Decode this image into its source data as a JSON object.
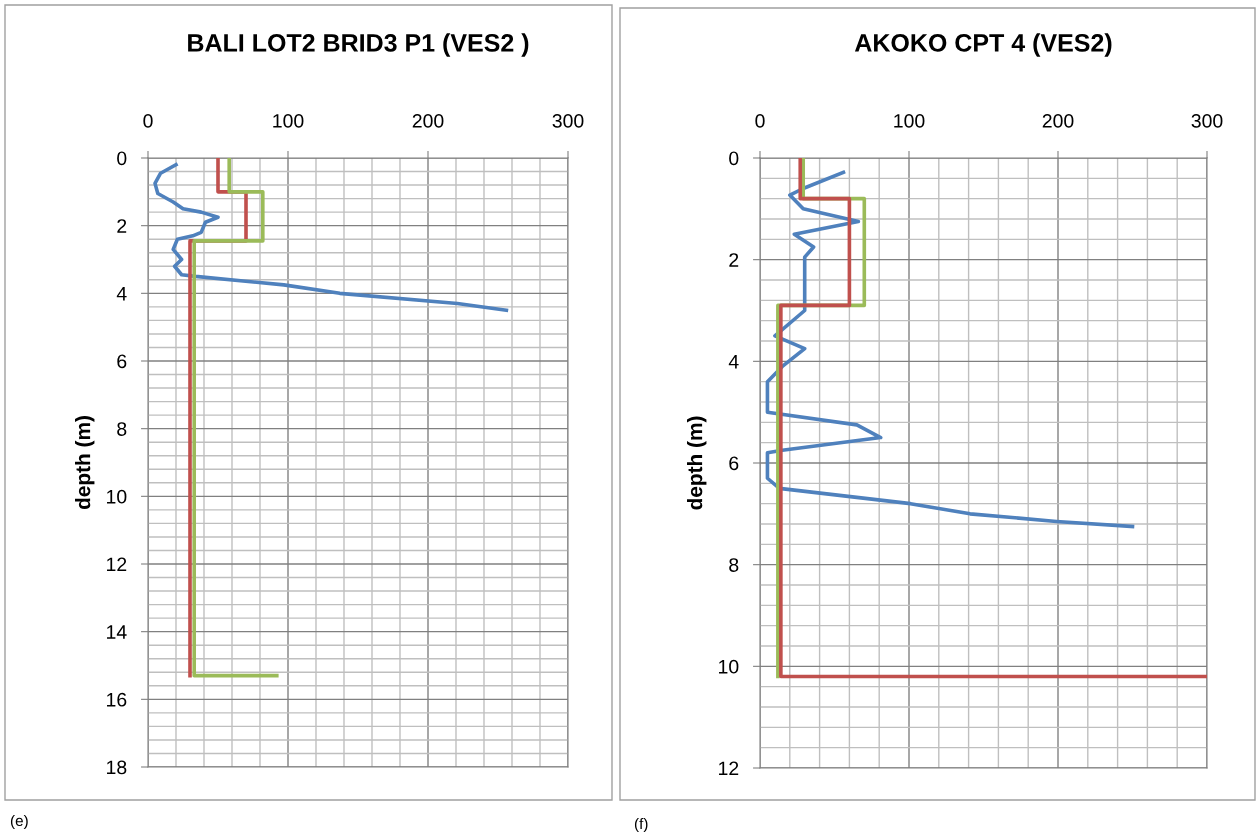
{
  "chart_data": [
    {
      "type": "line",
      "title": "BALI LOT2 BRID3 P1 (VES2 )",
      "ylabel": "depth (m)",
      "annotations": [
        "(e)"
      ],
      "xlim": [
        0,
        300
      ],
      "xticks": [
        0,
        100,
        200,
        300
      ],
      "ylim": [
        18,
        0
      ],
      "yticks": [
        0,
        2,
        4,
        6,
        8,
        10,
        12,
        14,
        16,
        18
      ],
      "grid": true,
      "legend": false,
      "marker": "none",
      "line_style": "solid",
      "series": [
        {
          "color": "#4f81bd",
          "x": [
            20,
            9,
            5,
            7,
            18,
            25,
            38,
            50,
            41,
            38,
            32,
            21,
            18,
            24,
            19,
            24,
            34,
            97,
            137,
            221,
            256
          ],
          "values": [
            0.2,
            0.45,
            0.75,
            1.05,
            1.3,
            1.5,
            1.6,
            1.75,
            1.9,
            2.2,
            2.3,
            2.4,
            2.7,
            3.0,
            3.2,
            3.45,
            3.5,
            3.75,
            4.0,
            4.3,
            4.5
          ]
        },
        {
          "color": "#c0504d",
          "x": [
            50,
            50,
            70,
            70,
            30,
            30
          ],
          "values": [
            0,
            1.0,
            1.0,
            2.45,
            2.45,
            15.3
          ]
        },
        {
          "color": "#9bbb59",
          "x": [
            58,
            58,
            82,
            82,
            33,
            33,
            92
          ],
          "values": [
            0,
            1.0,
            1.0,
            2.45,
            2.45,
            15.3,
            15.3
          ]
        }
      ]
    },
    {
      "type": "line",
      "title": "AKOKO CPT 4 (VES2)",
      "ylabel": "depth (m)",
      "annotations": [
        "(f)"
      ],
      "xlim": [
        0,
        300
      ],
      "xticks": [
        0,
        100,
        200,
        300
      ],
      "ylim": [
        12,
        0
      ],
      "yticks": [
        0,
        2,
        4,
        6,
        8,
        10,
        12
      ],
      "grid": true,
      "legend": false,
      "marker": "none",
      "line_style": "solid",
      "series": [
        {
          "color": "#4f81bd",
          "x": [
            56,
            29,
            20,
            29,
            66,
            23,
            36,
            30,
            30,
            10,
            30,
            15,
            5,
            5,
            65,
            81,
            15,
            5,
            5,
            13,
            101,
            141,
            199,
            250
          ],
          "values": [
            0.28,
            0.6,
            0.73,
            1.0,
            1.25,
            1.5,
            1.75,
            1.95,
            3.0,
            3.5,
            3.75,
            4.1,
            4.4,
            5.0,
            5.25,
            5.5,
            5.75,
            5.8,
            6.3,
            6.5,
            6.8,
            7.0,
            7.15,
            7.25
          ]
        },
        {
          "color": "#9bbb59",
          "x": [
            29,
            29,
            70,
            70,
            12,
            12
          ],
          "values": [
            0,
            0.8,
            0.8,
            2.9,
            2.9,
            10.2
          ]
        },
        {
          "color": "#c0504d",
          "x": [
            27,
            27,
            60,
            60,
            14,
            14,
            300
          ],
          "values": [
            0,
            0.8,
            0.8,
            2.9,
            2.9,
            10.2,
            10.2
          ]
        }
      ]
    }
  ]
}
